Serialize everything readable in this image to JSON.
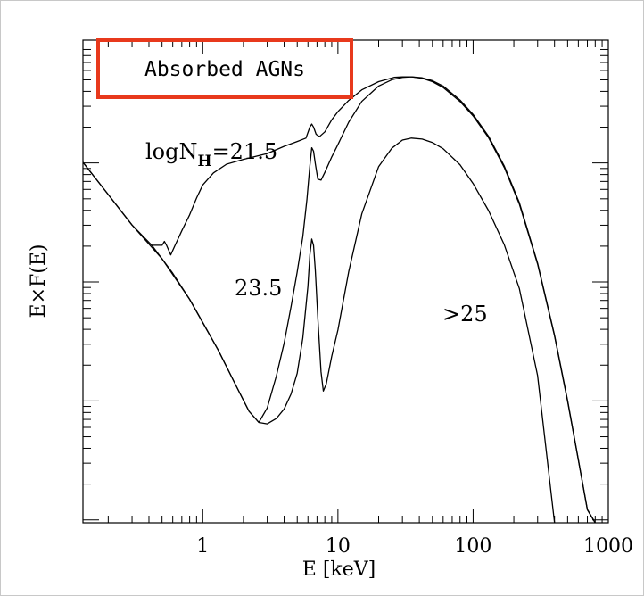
{
  "chart_data": {
    "type": "line",
    "xscale": "log",
    "xlim": [
      0.13,
      1000
    ],
    "xlabel": "E [keV]",
    "ylabel": "E×F(E)",
    "x_ticks": [
      {
        "value": 1,
        "label": "1"
      },
      {
        "value": 10,
        "label": "10"
      },
      {
        "value": 100,
        "label": "100"
      },
      {
        "value": 1000,
        "label": "1000"
      }
    ],
    "legend_box": {
      "text": "Absorbed AGNs",
      "border_color": "#e8391c"
    },
    "annotations": [
      {
        "id": "nh215",
        "prefix": "logN",
        "subscript": "H",
        "suffix": "=21.5"
      },
      {
        "id": "nh235",
        "text": "23.5"
      },
      {
        "id": "nh25",
        "text": ">25"
      }
    ],
    "series": [
      {
        "x": [
          0.13,
          0.2,
          0.3,
          0.42,
          0.5,
          0.52,
          0.54,
          0.58,
          0.62,
          0.7,
          0.8,
          0.9,
          1.0,
          1.2,
          1.5,
          2.0,
          3.0,
          4.0,
          5.0,
          5.8,
          6.2,
          6.4,
          6.6,
          6.9,
          7.3,
          8.0,
          9.0,
          10,
          12,
          15,
          20,
          26,
          30,
          35,
          42,
          50,
          60,
          80,
          100,
          130,
          170,
          220,
          300,
          400,
          500,
          600,
          700,
          800
        ],
        "y": [
          74.7,
          68.0,
          61.7,
          57.5,
          57.5,
          58.3,
          57.5,
          55.5,
          57.3,
          60.5,
          63.8,
          67.3,
          70.0,
          72.5,
          74.3,
          75.3,
          76.5,
          78.0,
          79.0,
          79.7,
          82.0,
          82.6,
          82.0,
          80.5,
          80.0,
          81.0,
          83.5,
          85.2,
          87.5,
          89.7,
          91.4,
          92.3,
          92.4,
          92.4,
          92.1,
          91.4,
          90.2,
          87.3,
          84.3,
          79.8,
          73.6,
          66.0,
          53.6,
          38.7,
          25.1,
          13.0,
          2.7,
          0
        ]
      },
      {
        "x": [
          0.42,
          0.5,
          0.6,
          0.8,
          1.0,
          1.3,
          1.7,
          2.2,
          2.6,
          3.0,
          3.5,
          4.0,
          4.5,
          5.0,
          5.5,
          5.9,
          6.2,
          6.4,
          6.6,
          6.8,
          7.1,
          7.5,
          8.0,
          9.0,
          10,
          12,
          15,
          20,
          25,
          30,
          35,
          42,
          50,
          60,
          80,
          100,
          130,
          170,
          220,
          300,
          400,
          500,
          600,
          700,
          800
        ],
        "y": [
          57.5,
          54.7,
          51.7,
          46.3,
          41.5,
          35.8,
          29.3,
          23.1,
          20.8,
          23.8,
          30.4,
          37.3,
          44.8,
          52.0,
          59.3,
          67.0,
          74.0,
          77.7,
          77.0,
          74.4,
          71.2,
          71.0,
          72.6,
          75.8,
          78.4,
          83.0,
          87.3,
          90.5,
          91.8,
          92.3,
          92.4,
          92.2,
          91.6,
          90.5,
          87.6,
          84.6,
          80.1,
          73.9,
          66.3,
          53.8,
          38.9,
          25.3,
          13.1,
          2.8,
          0
        ]
      },
      {
        "x": [
          0.13,
          0.2,
          0.3,
          0.5,
          0.8,
          1.0,
          1.3,
          1.7,
          2.2,
          2.6,
          3.0,
          3.5,
          4.0,
          4.5,
          5.0,
          5.5,
          6.0,
          6.2,
          6.4,
          6.6,
          6.8,
          7.1,
          7.5,
          7.8,
          8.2,
          9.0,
          10,
          12,
          15,
          20,
          25,
          30,
          35,
          42,
          50,
          60,
          80,
          100,
          130,
          170,
          220,
          300,
          400
        ],
        "y": [
          74.7,
          68.0,
          61.7,
          54.7,
          46.3,
          41.5,
          35.8,
          29.3,
          23.1,
          20.8,
          20.5,
          21.6,
          23.6,
          26.7,
          31.0,
          38.3,
          49.0,
          55.5,
          58.8,
          57.5,
          52.3,
          42.5,
          31.3,
          27.3,
          28.8,
          34.5,
          40.0,
          52.0,
          64.0,
          73.8,
          77.6,
          79.3,
          79.7,
          79.5,
          78.8,
          77.5,
          74.2,
          70.3,
          64.7,
          57.6,
          48.5,
          30.5,
          0
        ]
      }
    ]
  }
}
